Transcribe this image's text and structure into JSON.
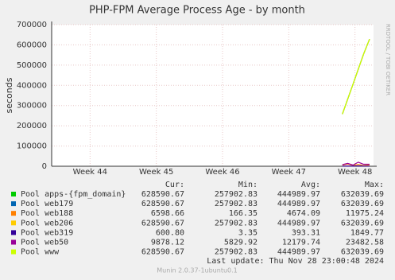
{
  "chart_data": {
    "type": "line",
    "title": "PHP-FPM Average Process Age - by month",
    "y_label": "seconds",
    "side_text": "RRDTOOL / TOBI OETIKER",
    "x": [
      47.81,
      47.89,
      47.97,
      48.05,
      48.13,
      48.22
    ],
    "xlim": [
      43.42,
      48.28
    ],
    "xticks": [
      {
        "value": 44,
        "label": "Week 44"
      },
      {
        "value": 45,
        "label": "Week 45"
      },
      {
        "value": 46,
        "label": "Week 46"
      },
      {
        "value": 47,
        "label": "Week 47"
      },
      {
        "value": 48,
        "label": "Week 48"
      }
    ],
    "ylim": [
      0,
      700000
    ],
    "yticks": [
      0,
      100000,
      200000,
      300000,
      400000,
      500000,
      600000,
      700000
    ],
    "grid": true,
    "series": [
      {
        "name": "Pool apps-{fpm_domain}",
        "color": "#00cc00",
        "values": [
          257902.83,
          332000,
          406000,
          480000,
          555000,
          628590.67
        ]
      },
      {
        "name": "Pool web179",
        "color": "#0066b3",
        "values": [
          257902.83,
          332000,
          406000,
          480000,
          555000,
          628590.67
        ]
      },
      {
        "name": "Pool web188",
        "color": "#ff8000",
        "values": [
          6000,
          11000,
          4000,
          9000,
          3000,
          6598.66
        ]
      },
      {
        "name": "Pool web206",
        "color": "#ffcc00",
        "values": [
          257902.83,
          332000,
          406000,
          480000,
          555000,
          628590.67
        ]
      },
      {
        "name": "Pool web319",
        "color": "#330099",
        "values": [
          500,
          1200,
          300,
          1800,
          900,
          600.8
        ]
      },
      {
        "name": "Pool web50",
        "color": "#990099",
        "values": [
          8000,
          14000,
          6000,
          20000,
          10000,
          9878.12
        ]
      },
      {
        "name": "Pool www",
        "color": "#ccff00",
        "values": [
          257902.83,
          332000,
          406000,
          480000,
          555000,
          628590.67
        ]
      }
    ],
    "legend_header": [
      "Cur:",
      "Min:",
      "Avg:",
      "Max:"
    ],
    "legend_stats": [
      [
        "628590.67",
        "257902.83",
        "444989.97",
        "632039.69"
      ],
      [
        "628590.67",
        "257902.83",
        "444989.97",
        "632039.69"
      ],
      [
        "6598.66",
        "166.35",
        "4674.09",
        "11975.24"
      ],
      [
        "628590.67",
        "257902.83",
        "444989.97",
        "632039.69"
      ],
      [
        "600.80",
        "3.35",
        "393.31",
        "1849.77"
      ],
      [
        "9878.12",
        "5829.92",
        "12179.74",
        "23482.58"
      ],
      [
        "628590.67",
        "257902.83",
        "444989.97",
        "632039.69"
      ]
    ],
    "last_update": "Last update: Thu Nov 28 23:00:48 2024",
    "footer": "Munin 2.0.37-1ubuntu0.1"
  }
}
